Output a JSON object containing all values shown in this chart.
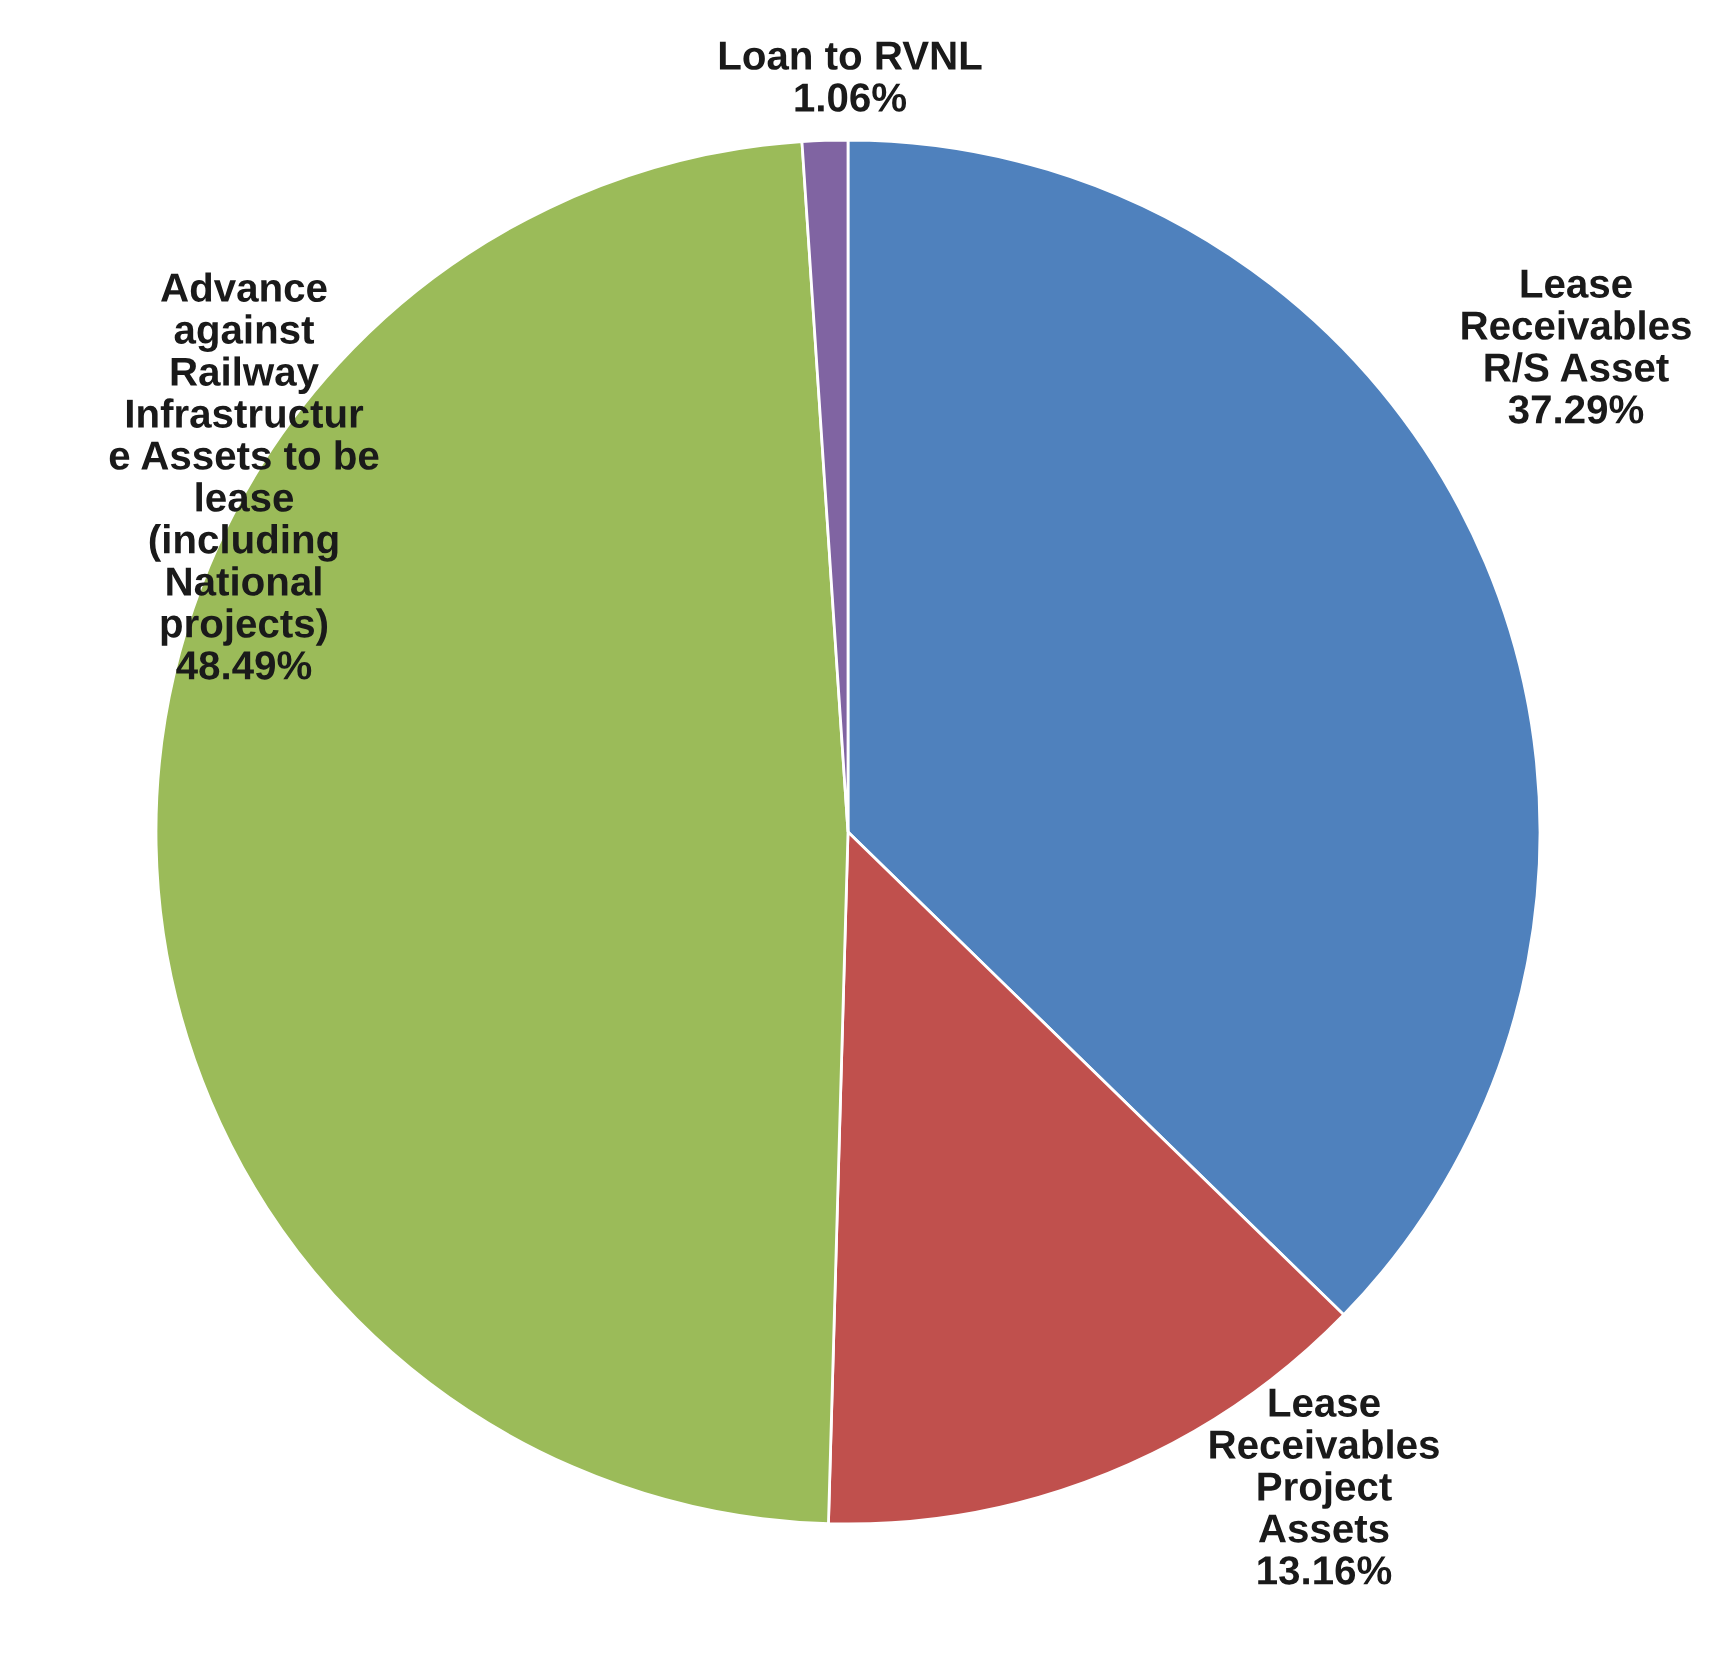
{
  "chart_data": {
    "type": "pie",
    "categories": [
      "Lease\nReceivables\nR/S Asset",
      "Lease\nReceivables\nProject\nAssets",
      "Advance\nagainst\nRailway\nInfrastructur\ne Assets to be\nlease\n(including\nNational\nprojects)",
      "Loan to RVNL"
    ],
    "values": [
      37.29,
      13.16,
      48.49,
      1.06
    ],
    "value_labels": [
      "37.29%",
      "13.16%",
      "48.49%",
      "1.06%"
    ],
    "colors": [
      "#4f81bd",
      "#c0504d",
      "#9bbb59",
      "#8064a2"
    ],
    "legend": false
  }
}
